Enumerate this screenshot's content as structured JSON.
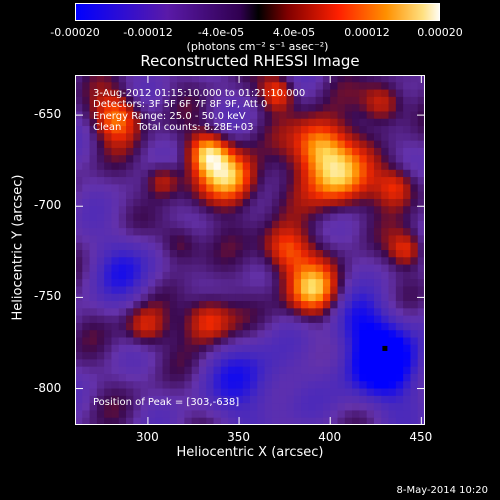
{
  "colorbar": {
    "ticks": [
      "-0.00020",
      "-0.00012",
      "-4.0e-05",
      "4.0e-05",
      "0.00012",
      "0.00020"
    ],
    "tick_values": [
      -0.0002,
      -0.00012,
      -4e-05,
      4e-05,
      0.00012,
      0.0002
    ],
    "unit_label": "(photons cm⁻² s⁻¹ asec⁻²)",
    "range": [
      -0.0002,
      0.0002
    ]
  },
  "info": {
    "time": "3-Aug-2012 01:15:10.000 to 01:21:10.000",
    "detectors": "Detectors: 3F 5F 6F 7F 8F 9F, Att 0",
    "energy": "Energy Range: 25.0 - 50.0 keV",
    "method": "Clean     Total counts: 8.28E+03"
  },
  "peak_label": "Position of Peak = [303,-638]",
  "footer_date": "8-May-2014 10:20",
  "chart_data": {
    "type": "heatmap",
    "title": "Reconstructed RHESSI Image",
    "xlabel": "Heliocentric X (arcsec)",
    "ylabel": "Heliocentric Y (arcsec)",
    "xlim": [
      260,
      452
    ],
    "ylim": [
      -820,
      -628
    ],
    "xticks": [
      300,
      350,
      400,
      450
    ],
    "yticks": [
      -650,
      -700,
      -750,
      -800
    ],
    "peak": [
      303,
      -638
    ],
    "marker": [
      430,
      -778
    ],
    "colormap": [
      "#0000ff",
      "#5a1aa8",
      "#7a3cc8",
      "#000000",
      "#a01010",
      "#ff3000",
      "#ff9000",
      "#ffe060",
      "#ffffff"
    ]
  }
}
